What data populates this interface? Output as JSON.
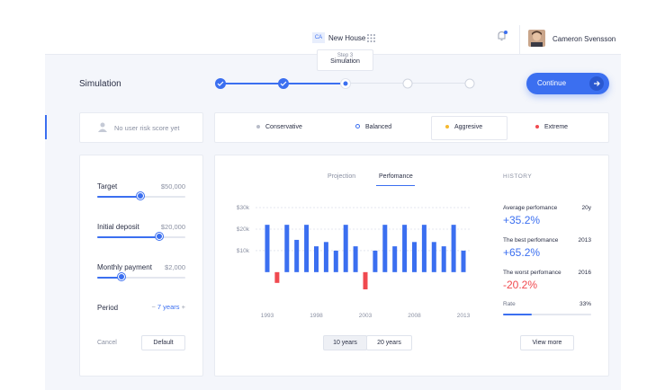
{
  "header": {
    "project_badge": "CA",
    "project": "New House",
    "user": "Cameron Svensson"
  },
  "stepper": {
    "title": "Simulation",
    "tooltip": {
      "step": "Step 3",
      "label": "Simulation"
    },
    "continue": "Continue"
  },
  "risk": {
    "empty": "No user risk score yet",
    "options": [
      {
        "label": "Conservative",
        "color": "#b8bcc8"
      },
      {
        "label": "Balanced",
        "color": "#3b6ff0"
      },
      {
        "label": "Aggresive",
        "color": "#f5b82e"
      },
      {
        "label": "Extreme",
        "color": "#f0494f"
      }
    ]
  },
  "settings": {
    "fields": [
      {
        "label": "Target",
        "value": "$50,000"
      },
      {
        "label": "Initial deposit",
        "value": "$20,000"
      },
      {
        "label": "Monthly payment",
        "value": "$2,000"
      }
    ],
    "period": {
      "label": "Period",
      "value": "7 years"
    },
    "cancel": "Cancel",
    "default": "Default"
  },
  "tabs": [
    "Projection",
    "Perfomance"
  ],
  "chart_data": {
    "type": "bar",
    "categories": [
      "1993",
      null,
      null,
      null,
      null,
      "1998",
      null,
      null,
      null,
      null,
      "2003",
      null,
      null,
      null,
      null,
      "2008",
      null,
      null,
      null,
      null,
      "2013"
    ],
    "values": [
      22000,
      -5000,
      22000,
      15000,
      22000,
      12000,
      14000,
      10000,
      22000,
      12000,
      -8000,
      10000,
      22000,
      12000,
      22000,
      14000,
      22000,
      14000,
      12000,
      22000,
      10000
    ],
    "color": "#3b6ff0",
    "negative_color": "#f0494f",
    "ylim": [
      -8000,
      30000
    ],
    "yticks": [
      {
        "value": 10000,
        "label": "$10k"
      },
      {
        "value": 20000,
        "label": "$20k"
      },
      {
        "value": 30000,
        "label": "$30k"
      }
    ],
    "grid": true
  },
  "range_buttons": [
    "10 years",
    "20 years"
  ],
  "history": {
    "title": "HISTORY",
    "items": [
      {
        "label": "Average perfomance",
        "period": "20y",
        "value": "+35.2%"
      },
      {
        "label": "The best perfomance",
        "period": "2013",
        "value": "+65.2%"
      },
      {
        "label": "The worst perfomance",
        "period": "2016",
        "value": "-20.2%"
      }
    ],
    "rate": {
      "label": "Rate",
      "value": 33,
      "value_label": "33%"
    },
    "view_more": "View more"
  }
}
